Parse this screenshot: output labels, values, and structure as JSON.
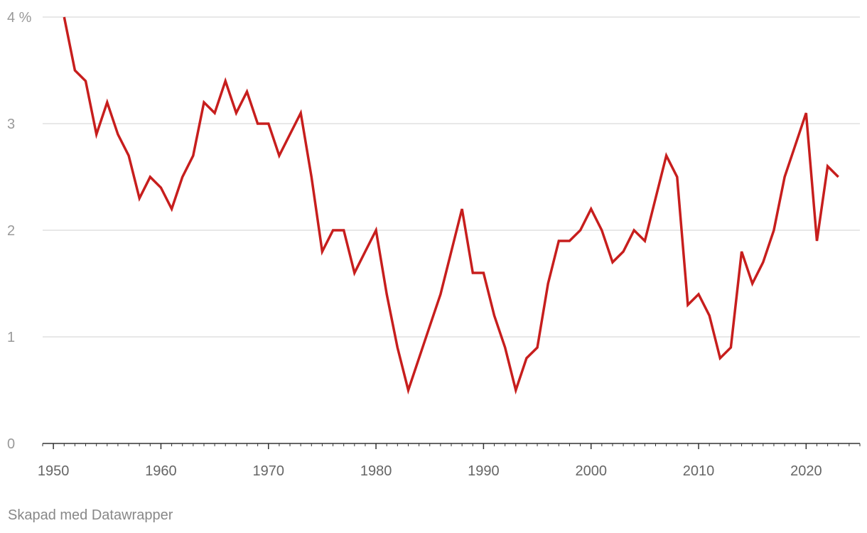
{
  "chart_data": {
    "type": "line",
    "x": [
      1951,
      1952,
      1953,
      1954,
      1955,
      1956,
      1957,
      1958,
      1959,
      1960,
      1961,
      1962,
      1963,
      1964,
      1965,
      1966,
      1967,
      1968,
      1969,
      1970,
      1971,
      1972,
      1973,
      1974,
      1975,
      1976,
      1977,
      1978,
      1979,
      1980,
      1981,
      1982,
      1983,
      1984,
      1985,
      1986,
      1987,
      1988,
      1989,
      1990,
      1991,
      1992,
      1993,
      1994,
      1995,
      1996,
      1997,
      1998,
      1999,
      2000,
      2001,
      2002,
      2003,
      2004,
      2005,
      2006,
      2007,
      2008,
      2009,
      2010,
      2011,
      2012,
      2013,
      2014,
      2015,
      2016,
      2017,
      2018,
      2019,
      2020,
      2021,
      2022,
      2023
    ],
    "series": [
      {
        "values": [
          4.0,
          3.5,
          3.4,
          2.9,
          3.2,
          2.9,
          2.7,
          2.3,
          2.5,
          2.4,
          2.2,
          2.5,
          2.7,
          3.2,
          3.1,
          3.4,
          3.1,
          3.3,
          3.0,
          3.0,
          2.7,
          2.9,
          3.1,
          2.5,
          1.8,
          2.0,
          2.0,
          1.6,
          1.8,
          2.0,
          1.4,
          0.9,
          0.5,
          0.8,
          1.1,
          1.4,
          1.8,
          2.2,
          1.6,
          1.6,
          1.2,
          0.9,
          0.5,
          0.8,
          0.9,
          1.5,
          1.9,
          1.9,
          2.0,
          2.2,
          2.0,
          1.7,
          1.8,
          2.0,
          1.9,
          2.3,
          2.7,
          2.5,
          1.3,
          1.4,
          1.2,
          0.8,
          0.9,
          1.8,
          1.5,
          1.7,
          2.0,
          2.5,
          2.8,
          3.1,
          1.9,
          2.6,
          2.5
        ],
        "color": "#c71e1d"
      }
    ],
    "xlim": [
      1949,
      2025
    ],
    "ylim": [
      0,
      4
    ],
    "y_ticks": [
      {
        "value": 0,
        "label": "0"
      },
      {
        "value": 1,
        "label": "1"
      },
      {
        "value": 2,
        "label": "2"
      },
      {
        "value": 3,
        "label": "3"
      },
      {
        "value": 4,
        "label": "4 %"
      }
    ],
    "x_ticks": [
      {
        "value": 1950,
        "label": "1950"
      },
      {
        "value": 1960,
        "label": "1960"
      },
      {
        "value": 1970,
        "label": "1970"
      },
      {
        "value": 1980,
        "label": "1980"
      },
      {
        "value": 1990,
        "label": "1990"
      },
      {
        "value": 2000,
        "label": "2000"
      },
      {
        "value": 2010,
        "label": "2010"
      },
      {
        "value": 2020,
        "label": "2020"
      }
    ],
    "grid": true,
    "colors": {
      "line": "#c71e1d",
      "grid": "#e0e0e0",
      "axis": "#333333"
    }
  },
  "footer": {
    "credit": "Skapad med Datawrapper"
  }
}
